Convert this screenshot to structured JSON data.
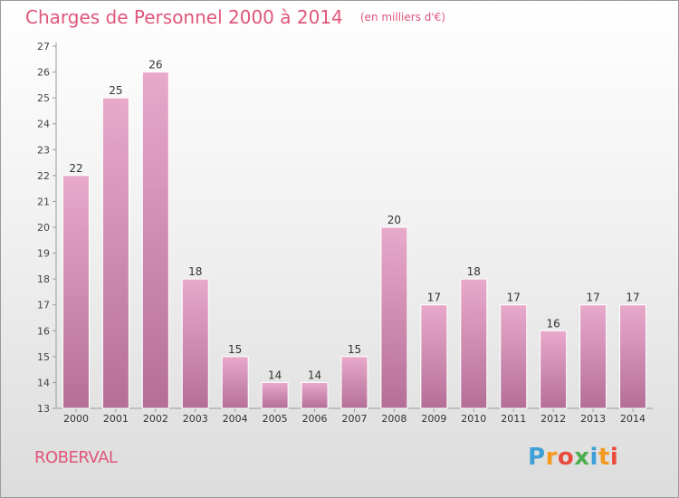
{
  "page": {
    "title": "Charges de Personnel 2000 à 2014",
    "subtitle": "(en milliers d'€)",
    "commune": "ROBERVAL",
    "logo": "Proxiti",
    "logo_colors": [
      "#3fa0d8",
      "#f39a1f",
      "#e94b3c",
      "#4cae4c",
      "#3fa0d8",
      "#f39a1f",
      "#e94b3c"
    ]
  },
  "chart_data": {
    "type": "bar",
    "title": "Charges de Personnel 2000 à 2014",
    "subtitle": "(en milliers d'€)",
    "xlabel": "",
    "ylabel": "",
    "categories": [
      "2000",
      "2001",
      "2002",
      "2003",
      "2004",
      "2005",
      "2006",
      "2007",
      "2008",
      "2009",
      "2010",
      "2011",
      "2012",
      "2013",
      "2014"
    ],
    "values": [
      22,
      25,
      26,
      18,
      15,
      14,
      14,
      15,
      20,
      17,
      18,
      17,
      16,
      17,
      17
    ],
    "ylim": [
      13,
      27
    ],
    "yticks": [
      13,
      14,
      15,
      16,
      17,
      18,
      19,
      20,
      21,
      22,
      23,
      24,
      25,
      26,
      27
    ],
    "grid": false,
    "legend": "none",
    "bar_color": "#d98bb3"
  }
}
